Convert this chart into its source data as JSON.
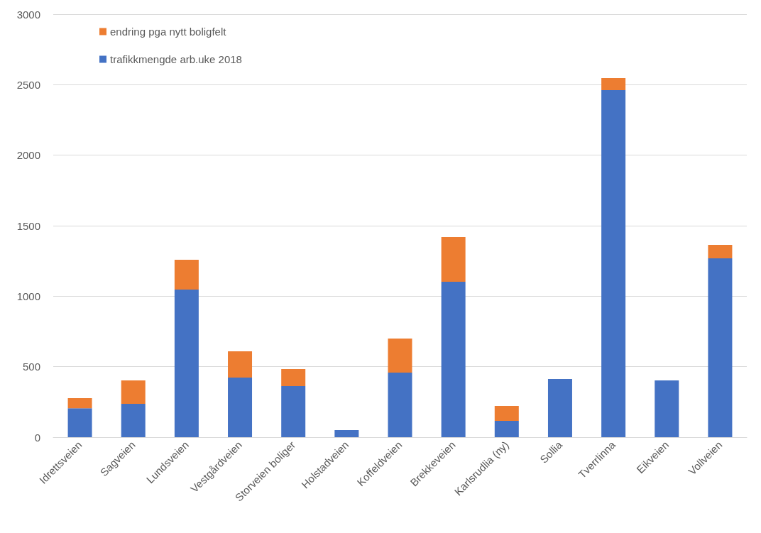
{
  "chart_data": {
    "type": "bar",
    "stacked": true,
    "categories": [
      "Idrettsveien",
      "Sagveien",
      "Lundsveien",
      "Vestgårdveien",
      "Storveien boliger",
      "Holstadveien",
      "Koffeldveien",
      "Brekkeveien",
      "Karlsrudlia (ny)",
      "Sollia",
      "Tverrlinna",
      "Eikveien",
      "Vollveien"
    ],
    "series": [
      {
        "name": "trafikkmengde arb.uke 2018",
        "color": "#4472c4",
        "values": [
          205,
          237,
          1047,
          423,
          362,
          50,
          458,
          1102,
          116,
          413,
          2461,
          403,
          1268
        ]
      },
      {
        "name": "endring pga nytt boligfelt",
        "color": "#ed7d31",
        "values": [
          72,
          166,
          211,
          186,
          121,
          null,
          242,
          317,
          105,
          null,
          86,
          null,
          96
        ]
      }
    ],
    "ylim": [
      0,
      3000
    ],
    "yticks": [
      0,
      500,
      1000,
      1500,
      2000,
      2500,
      3000
    ],
    "grid": "y",
    "legend": "top left"
  }
}
